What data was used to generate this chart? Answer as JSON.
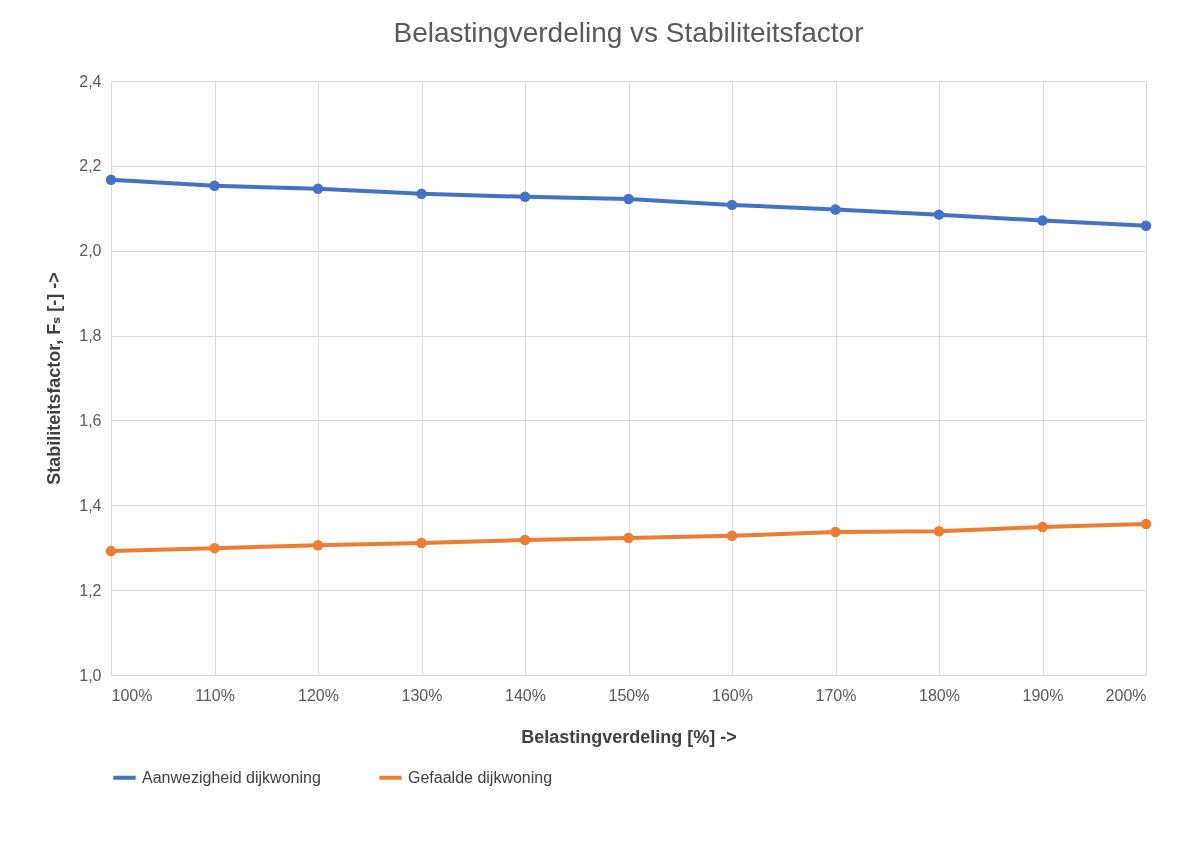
{
  "chart_data": {
    "type": "line",
    "title": "Belastingverdeling vs Stabiliteitsfactor",
    "xlabel": "Belastingverdeling [%] ->",
    "ylabel": "Stabiliteitsfactor, Fₛ [-] ->",
    "categories": [
      "100%",
      "110%",
      "120%",
      "130%",
      "140%",
      "150%",
      "160%",
      "170%",
      "180%",
      "190%",
      "200%"
    ],
    "series": [
      {
        "name": "Aanwezigheid dijkwoning",
        "color": "#4472c4",
        "values": [
          2.167,
          2.153,
          2.146,
          2.134,
          2.127,
          2.122,
          2.108,
          2.097,
          2.085,
          2.071,
          2.059
        ]
      },
      {
        "name": "Gefaalde dijkwoning",
        "color": "#ed7d31",
        "values": [
          1.292,
          1.299,
          1.306,
          1.311,
          1.318,
          1.323,
          1.328,
          1.337,
          1.339,
          1.349,
          1.356
        ]
      }
    ],
    "ylim": [
      1.0,
      2.4
    ],
    "yticks": [
      {
        "value": 1.0,
        "label": "1,0"
      },
      {
        "value": 1.2,
        "label": "1,2"
      },
      {
        "value": 1.4,
        "label": "1,4"
      },
      {
        "value": 1.6,
        "label": "1,6"
      },
      {
        "value": 1.8,
        "label": "1,8"
      },
      {
        "value": 2.0,
        "label": "2,0"
      },
      {
        "value": 2.2,
        "label": "2,2"
      },
      {
        "value": 2.4,
        "label": "2,4"
      }
    ],
    "grid": true,
    "legend": "bottom",
    "marker": "circle",
    "line_style": "solid"
  }
}
